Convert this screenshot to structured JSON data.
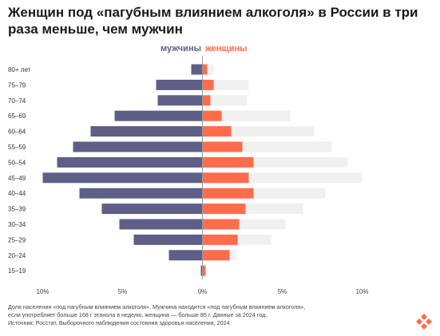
{
  "title": "Женщин под «пагубным влиянием алкоголя» в России в три раза меньше, чем мужчин",
  "legend": {
    "men": "мужчины",
    "women": "женщины"
  },
  "notes": {
    "line1": "Доля населения «под пагубным влиянием алкоголя». Мужчина находится «под пагубным влиянием алкоголя»,",
    "line2": "если употребляет больше 168 г этанола в неделю, женщина — больше 85 г. Данные за 2024 год.",
    "source": "Источник: Росстат, Выборочного наблюдения состояния здоровья населения, 2024"
  },
  "colors": {
    "men": "#5e5f86",
    "women": "#ff6c4c",
    "men_background": "#f0f0f0"
  },
  "chart_data": {
    "type": "bar",
    "orientation": "horizontal-diverging",
    "categories": [
      "80+ лет",
      "75–79",
      "70–74",
      "65–69",
      "60–64",
      "55–59",
      "50–54",
      "45–49",
      "40–44",
      "35–39",
      "30–34",
      "25–29",
      "20–24",
      "15–19"
    ],
    "series": [
      {
        "name": "мужчины",
        "side": "left",
        "values": [
          0.7,
          2.9,
          2.8,
          5.5,
          7.0,
          8.1,
          9.1,
          10.0,
          7.7,
          6.3,
          5.2,
          4.3,
          2.1,
          0.1
        ]
      },
      {
        "name": "женщины",
        "side": "right",
        "values": [
          0.3,
          0.7,
          0.5,
          1.2,
          1.8,
          2.5,
          3.2,
          2.9,
          3.2,
          2.7,
          2.3,
          2.2,
          1.7,
          0.2
        ]
      }
    ],
    "mirror_of_men_on_women_side": true,
    "xlim": [
      -10,
      10
    ],
    "xticks": [
      {
        "value": -10,
        "label": "10%"
      },
      {
        "value": -5,
        "label": "5%"
      },
      {
        "value": 0,
        "label": "0%"
      },
      {
        "value": 5,
        "label": "5%"
      },
      {
        "value": 10,
        "label": "10%"
      }
    ],
    "grid": false,
    "legend_position": "top-center"
  }
}
